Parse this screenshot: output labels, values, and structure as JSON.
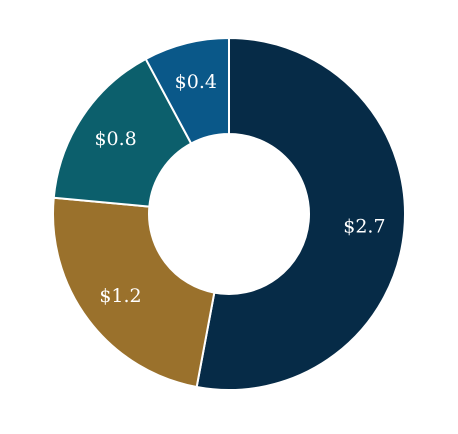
{
  "chart_data": {
    "type": "pie",
    "variant": "donut",
    "title": "",
    "slices": [
      {
        "label": "$2.7",
        "value": 2.7,
        "color": "#062B47"
      },
      {
        "label": "$1.2",
        "value": 1.2,
        "color": "#9A712C"
      },
      {
        "label": "$0.8",
        "value": 0.8,
        "color": "#0C5F6C"
      },
      {
        "label": "$0.4",
        "value": 0.4,
        "color": "#0A5889"
      }
    ],
    "start": "top",
    "direction": "clockwise",
    "legend": "none",
    "label_color": "#ffffff",
    "separator_color": "#ffffff"
  }
}
